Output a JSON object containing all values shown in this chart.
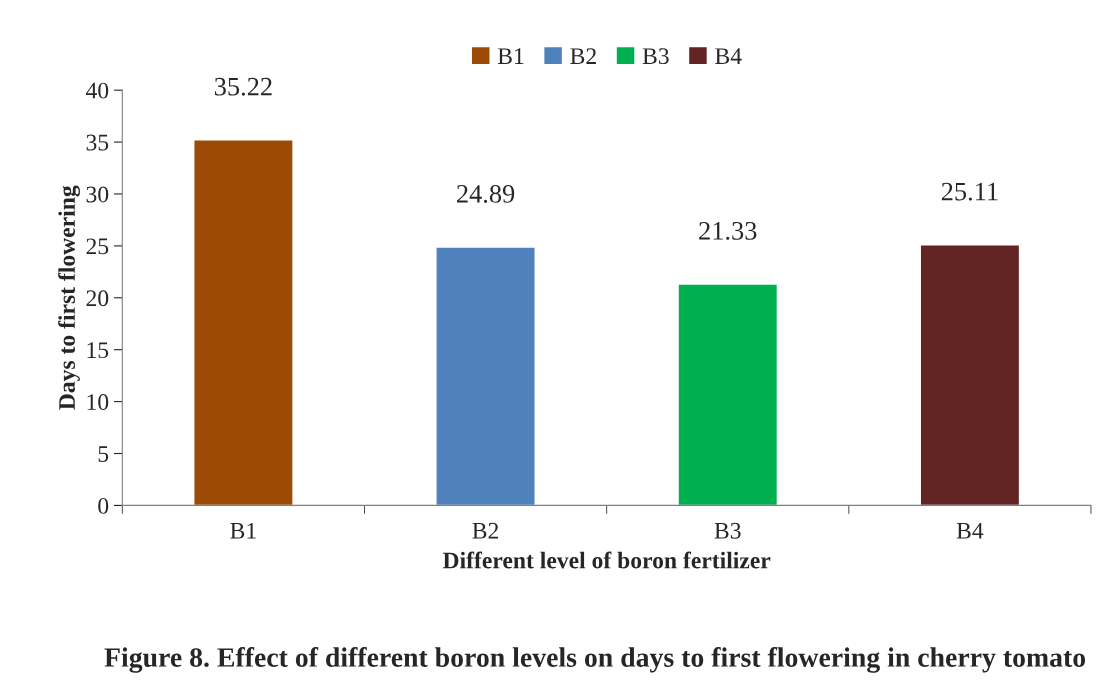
{
  "chart_data": {
    "type": "bar",
    "xlabel": "Different level of boron fertilizer",
    "ylabel": "Days to first flowering",
    "annotations": [
      "Figure 8. Effect of different boron levels on days to first flowering in cherry tomato"
    ],
    "categories": [
      "B1",
      "B2",
      "B3",
      "B4"
    ],
    "series": [
      {
        "name": "B1",
        "color": "#9c4a06",
        "values": [
          35.22,
          null,
          null,
          null
        ]
      },
      {
        "name": "B2",
        "color": "#4f81bd",
        "values": [
          null,
          24.89,
          null,
          null
        ]
      },
      {
        "name": "B3",
        "color": "#00b050",
        "values": [
          null,
          null,
          21.33,
          null
        ]
      },
      {
        "name": "B4",
        "color": "#632523",
        "values": [
          null,
          null,
          null,
          25.11
        ]
      }
    ],
    "ylim": [
      0,
      40
    ],
    "yticks": [
      0,
      5,
      10,
      15,
      20,
      25,
      30,
      35,
      40
    ],
    "grid": false,
    "legend": "top",
    "data_labels": true
  }
}
